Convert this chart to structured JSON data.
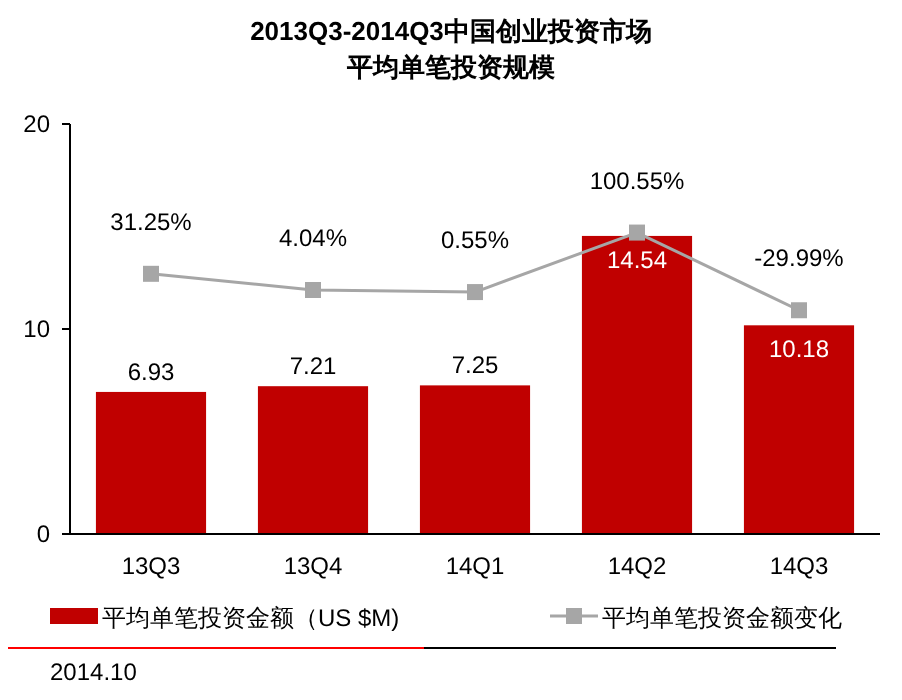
{
  "chart_data": {
    "type": "bar",
    "title": "2013Q3-2014Q3中国创业投资市场",
    "subtitle": "平均单笔投资规模",
    "categories": [
      "13Q3",
      "13Q4",
      "14Q1",
      "14Q2",
      "14Q3"
    ],
    "series": [
      {
        "name": "平均单笔投资金额（US $M)",
        "color": "#c00000",
        "values": [
          6.93,
          7.21,
          7.25,
          14.54,
          10.18
        ],
        "data_labels": true
      },
      {
        "name": "平均单笔投资金额变化",
        "type": "line",
        "axis": "y2",
        "color": "#a6a6a6",
        "marker": "square",
        "values": [
          31.25,
          4.04,
          0.55,
          100.55,
          -29.99
        ],
        "value_labels": [
          "31.25%",
          "4.04%",
          "0.55%",
          "100.55%",
          "-29.99%"
        ]
      }
    ],
    "ylim": [
      0,
      20
    ],
    "yticks": [
      0,
      10,
      20
    ],
    "y2lim": [
      -406,
      283
    ],
    "grid": false,
    "legend": "bottom",
    "tick_labels": "xy",
    "annotations": [
      "2014.10"
    ]
  }
}
